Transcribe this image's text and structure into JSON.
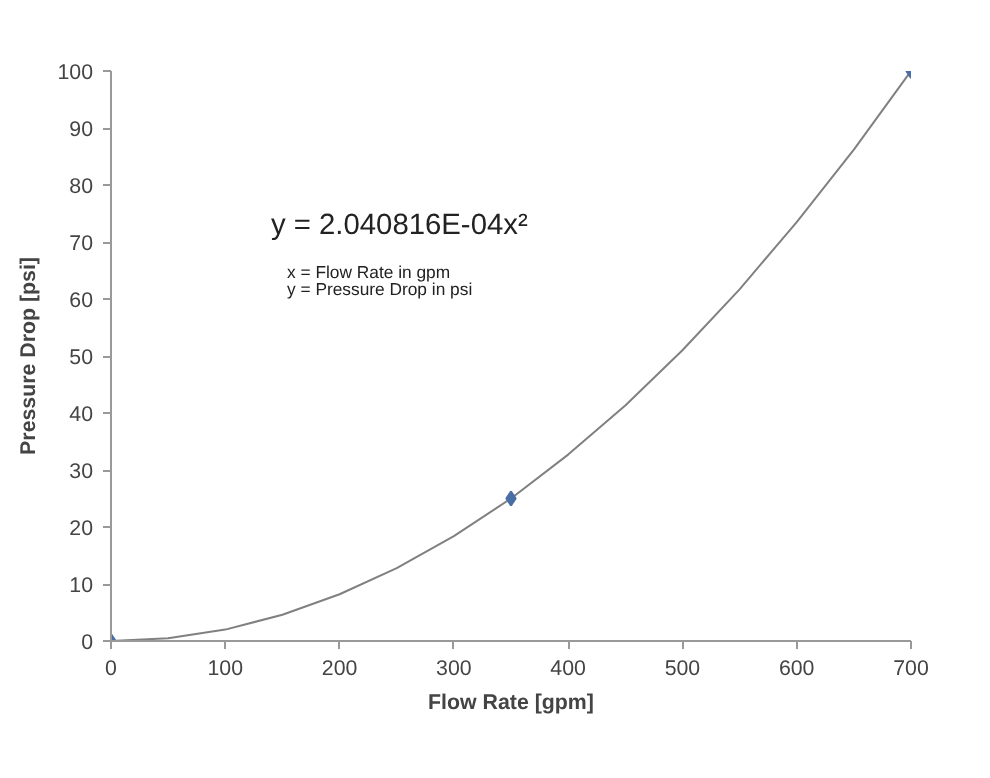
{
  "chart_data": {
    "type": "scatter",
    "xlabel": "Flow Rate [gpm]",
    "ylabel": "Pressure Drop [psi]",
    "xlim": [
      0,
      700
    ],
    "xticks": [
      0,
      100,
      200,
      300,
      400,
      500,
      600,
      700
    ],
    "ylim": [
      0,
      100
    ],
    "yticks": [
      0,
      10,
      20,
      30,
      40,
      50,
      60,
      70,
      80,
      90,
      100
    ],
    "grid": false,
    "marker": "diamond",
    "annotations": [
      "y = 2.040816E-04x²",
      "x = Flow Rate in gpm",
      "y = Pressure Drop in psi"
    ],
    "series": [
      {
        "type": "line",
        "color": "#808080",
        "line_style": "solid",
        "marker": "none",
        "x": [
          0,
          50,
          100,
          150,
          200,
          250,
          300,
          350,
          400,
          450,
          500,
          550,
          600,
          650,
          700
        ],
        "values": [
          0,
          0.5,
          2.0,
          4.6,
          8.2,
          12.8,
          18.4,
          25,
          32.7,
          41.3,
          51,
          61.7,
          73.5,
          86.2,
          100
        ]
      },
      {
        "color": "#4a6fa5",
        "x": [
          0,
          350,
          700
        ],
        "values": [
          0,
          25,
          100
        ]
      }
    ]
  }
}
